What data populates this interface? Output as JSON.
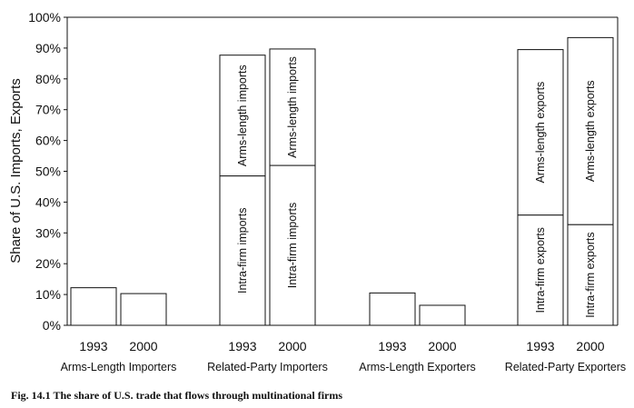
{
  "caption": "Fig. 14.1    The share of U.S. trade that flows through multinational firms",
  "chart_data": {
    "type": "bar",
    "stacked": true,
    "ylabel": "Share of U.S. Imports, Exports",
    "ylim": [
      0,
      100
    ],
    "yticks": [
      "0%",
      "10%",
      "20%",
      "30%",
      "40%",
      "50%",
      "60%",
      "70%",
      "80%",
      "90%",
      "100%"
    ],
    "grid": false,
    "groups": [
      {
        "label": "Arms-Length Importers",
        "bars": [
          {
            "year": "1993",
            "segments": [
              {
                "value": 12.2,
                "label": ""
              }
            ]
          },
          {
            "year": "2000",
            "segments": [
              {
                "value": 10.3,
                "label": ""
              }
            ]
          }
        ]
      },
      {
        "label": "Related-Party Importers",
        "bars": [
          {
            "year": "1993",
            "segments": [
              {
                "value": 48.5,
                "label": "Intra-firm imports"
              },
              {
                "value": 39.2,
                "label": "Arms-length imports"
              }
            ]
          },
          {
            "year": "2000",
            "segments": [
              {
                "value": 51.9,
                "label": "Intra-firm imports"
              },
              {
                "value": 37.8,
                "label": "Arms-length imports"
              }
            ]
          }
        ]
      },
      {
        "label": "Arms-Length Exporters",
        "bars": [
          {
            "year": "1993",
            "segments": [
              {
                "value": 10.5,
                "label": ""
              }
            ]
          },
          {
            "year": "2000",
            "segments": [
              {
                "value": 6.5,
                "label": ""
              }
            ]
          }
        ]
      },
      {
        "label": "Related-Party Exporters",
        "bars": [
          {
            "year": "1993",
            "segments": [
              {
                "value": 35.8,
                "label": "Intra-firm exports"
              },
              {
                "value": 53.7,
                "label": "Arms-length exports"
              }
            ]
          },
          {
            "year": "2000",
            "segments": [
              {
                "value": 32.7,
                "label": "Intra-firm exports"
              },
              {
                "value": 60.7,
                "label": "Arms-length exports"
              }
            ]
          }
        ]
      }
    ]
  }
}
